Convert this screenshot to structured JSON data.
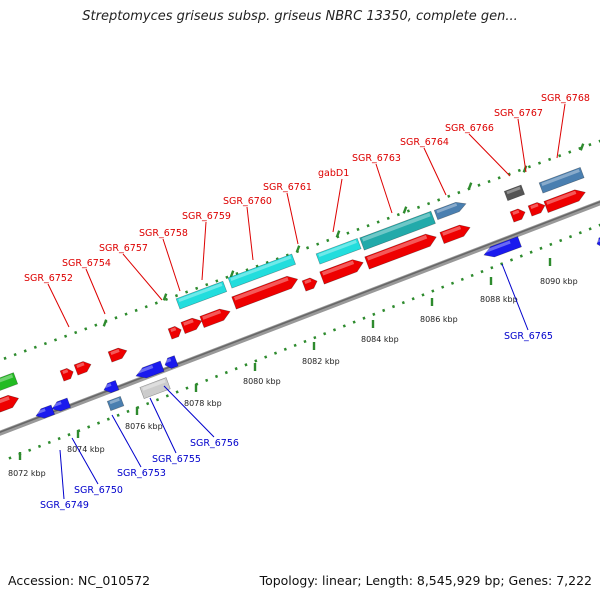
{
  "header": {
    "title": "Streptomyces griseus subsp. griseus NBRC 13350, complete gen..."
  },
  "footer": {
    "accession": "Accession: NC_010572",
    "summary": "Topology: linear; Length: 8,545,929 bp; Genes: 7,222"
  },
  "colors": {
    "forward_label": "#dd0000",
    "reverse_label": "#0000cc",
    "tick": "#2e8b2e",
    "backbone": "#888888",
    "red": "#ee0000",
    "blue": "#1a1aee",
    "cyan": "#22dddd",
    "teal": "#22aaaa",
    "steel": "#4a7fb0",
    "gray": "#cccccc",
    "dark": "#555555",
    "green": "#22bb22"
  },
  "ticks": [
    {
      "label": "8072 kbp"
    },
    {
      "label": "8074 kbp"
    },
    {
      "label": "8076 kbp"
    },
    {
      "label": "8078 kbp"
    },
    {
      "label": "8080 kbp"
    },
    {
      "label": "8082 kbp"
    },
    {
      "label": "8084 kbp"
    },
    {
      "label": "8086 kbp"
    },
    {
      "label": "8088 kbp"
    },
    {
      "label": "8090 kbp"
    }
  ],
  "forward_labels": [
    {
      "name": "SGR_6752"
    },
    {
      "name": "SGR_6754"
    },
    {
      "name": "SGR_6757"
    },
    {
      "name": "SGR_6758"
    },
    {
      "name": "SGR_6759"
    },
    {
      "name": "SGR_6760"
    },
    {
      "name": "SGR_6761"
    },
    {
      "name": "gabD1"
    },
    {
      "name": "SGR_6763"
    },
    {
      "name": "SGR_6764"
    },
    {
      "name": "SGR_6766"
    },
    {
      "name": "SGR_6767"
    },
    {
      "name": "SGR_6768"
    }
  ],
  "reverse_labels": [
    {
      "name": "SGR_6749"
    },
    {
      "name": "SGR_6750"
    },
    {
      "name": "SGR_6753"
    },
    {
      "name": "SGR_6755"
    },
    {
      "name": "SGR_6756"
    },
    {
      "name": "SGR_6765"
    }
  ]
}
